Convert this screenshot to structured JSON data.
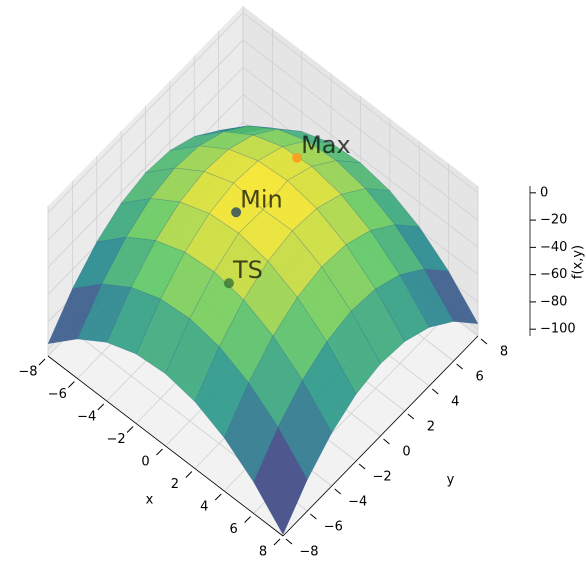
{
  "chart_data": {
    "type": "surface",
    "xlabel": "x",
    "ylabel": "y",
    "zlabel": "f(x,y)",
    "xlim": [
      -8,
      8
    ],
    "ylim": [
      -8,
      8
    ],
    "zlim": [
      -105,
      5
    ],
    "xticks": [
      {
        "value": -8,
        "label": "−8"
      },
      {
        "value": -6,
        "label": "−6"
      },
      {
        "value": -4,
        "label": "−4"
      },
      {
        "value": -2,
        "label": "−2"
      },
      0,
      2,
      4,
      6,
      8
    ],
    "yticks": [
      {
        "value": -8,
        "label": "−8"
      },
      {
        "value": -6,
        "label": "−6"
      },
      {
        "value": -4,
        "label": "−4"
      },
      {
        "value": -2,
        "label": "−2"
      },
      0,
      2,
      4,
      6,
      8
    ],
    "zticks": [
      {
        "value": -100,
        "label": "−100"
      },
      {
        "value": -80,
        "label": "−80"
      },
      {
        "value": -60,
        "label": "−60"
      },
      {
        "value": -40,
        "label": "−40"
      },
      {
        "value": -20,
        "label": "−20"
      },
      0
    ],
    "grid": true,
    "colormap": [
      "#440154",
      "#3b528b",
      "#21918c",
      "#5ec962",
      "#fde725"
    ],
    "surface": {
      "x": [
        -8,
        -6,
        -4,
        -2,
        0,
        2,
        4,
        6,
        8
      ],
      "y": [
        -8,
        -6,
        -4,
        -2,
        0,
        2,
        4,
        6,
        8
      ],
      "z": [
        [
          -96,
          -74,
          -58,
          -48,
          -44,
          -46,
          -54,
          -68,
          -88
        ],
        [
          -76,
          -54,
          -38,
          -28,
          -24,
          -26,
          -34,
          -48,
          -68
        ],
        [
          -62,
          -40,
          -24,
          -14,
          -10,
          -12,
          -20,
          -34,
          -54
        ],
        [
          -54,
          -32,
          -16,
          -6,
          -2,
          -4,
          -12,
          -26,
          -46
        ],
        [
          -52,
          -30,
          -14,
          -4,
          -5,
          -2,
          -10,
          -24,
          -44
        ],
        [
          -56,
          -34,
          -18,
          -8,
          -4,
          -6,
          -14,
          -28,
          -48
        ],
        [
          -66,
          -44,
          -28,
          -18,
          -14,
          -16,
          -24,
          -38,
          -58
        ],
        [
          -82,
          -60,
          -44,
          -34,
          -30,
          -32,
          -40,
          -54,
          -74
        ],
        [
          -104,
          -82,
          -66,
          -56,
          -52,
          -54,
          -62,
          -76,
          -96
        ]
      ]
    },
    "points": [
      {
        "label": "TS",
        "x": 1,
        "y": -4,
        "z": -14,
        "color": "#3c7a3c"
      },
      {
        "label": "Min",
        "x": -1,
        "y": -1,
        "z": -6,
        "color": "#2f4f5f"
      },
      {
        "label": "Max",
        "x": -1,
        "y": 4,
        "z": -12,
        "color": "#ff9a1a"
      }
    ]
  }
}
